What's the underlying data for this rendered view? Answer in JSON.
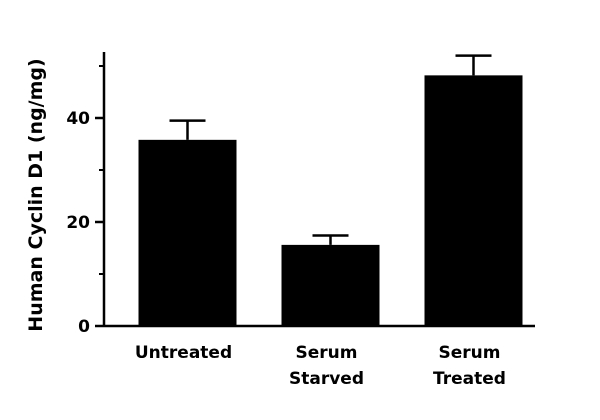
{
  "chart_data": {
    "type": "bar",
    "title": "",
    "xlabel": "",
    "ylabel": "Human Cyclin D1 (ng/mg)",
    "categories": [
      [
        "Untreated"
      ],
      [
        "Serum",
        "Starved"
      ],
      [
        "Serum",
        "Treated"
      ]
    ],
    "values": [
      35.8,
      15.6,
      48.2
    ],
    "error_upper": [
      39.5,
      17.4,
      52.0
    ],
    "ylim": [
      0,
      55
    ],
    "y_major_ticks": [
      0,
      20,
      40
    ],
    "y_tick_labels": [
      "0",
      "20",
      "40"
    ],
    "y_minor_ticks": [
      10,
      30,
      50
    ],
    "bar_color": "#000000",
    "grid": false,
    "legend": "none"
  }
}
